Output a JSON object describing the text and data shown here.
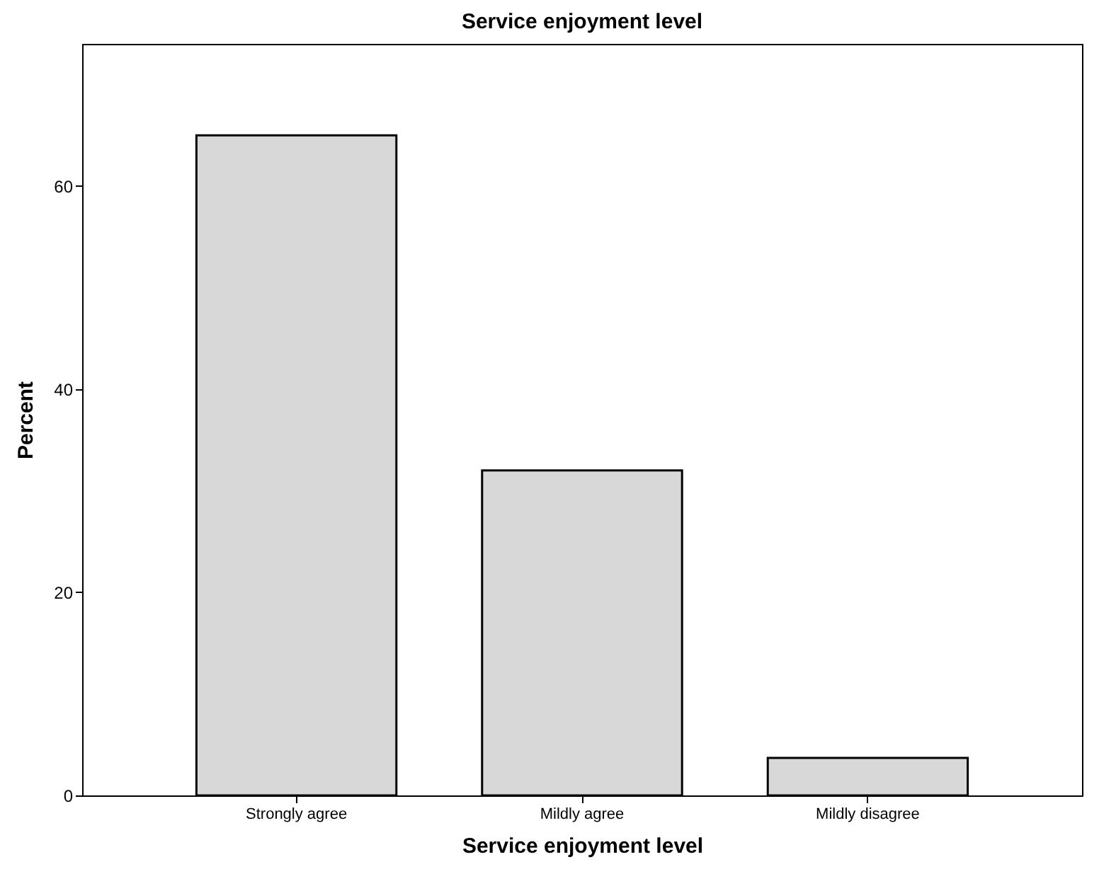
{
  "chart_data": {
    "type": "bar",
    "title": "Service enjoyment level",
    "xlabel": "Service enjoyment level",
    "ylabel": "Percent",
    "categories": [
      "Strongly agree",
      "Mildly agree",
      "Mildly disagree"
    ],
    "values": [
      65,
      32,
      3.7
    ],
    "color": "#d8d8d8",
    "ylim": [
      0,
      74
    ],
    "yticks": [
      0,
      20,
      40,
      60
    ],
    "grid": false
  }
}
